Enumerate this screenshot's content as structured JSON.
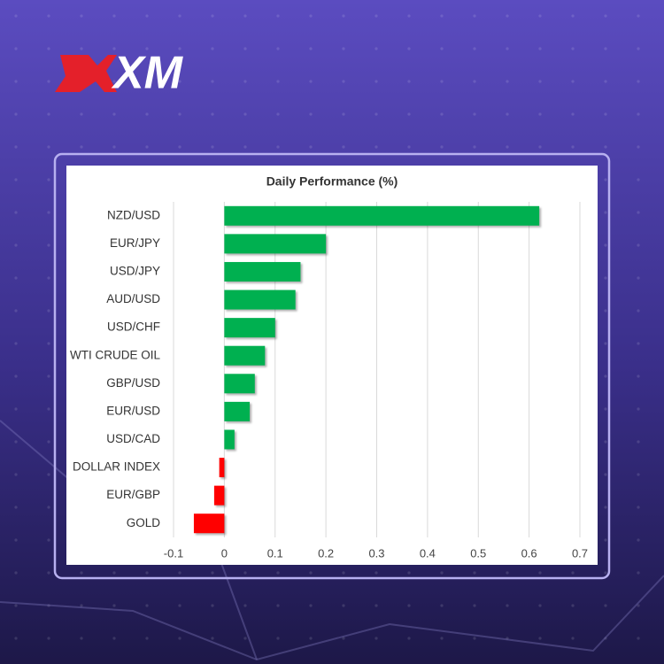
{
  "brand": "XM",
  "chart_data": {
    "type": "hbar",
    "title": "Daily Performance (%)",
    "categories": [
      "NZD/USD",
      "EUR/JPY",
      "USD/JPY",
      "AUD/USD",
      "USD/CHF",
      "WTI CRUDE OIL",
      "GBP/USD",
      "EUR/USD",
      "USD/CAD",
      "DOLLAR INDEX",
      "EUR/GBP",
      "GOLD"
    ],
    "values": [
      0.62,
      0.2,
      0.15,
      0.14,
      0.1,
      0.08,
      0.06,
      0.05,
      0.02,
      -0.01,
      -0.02,
      -0.06
    ],
    "color": "#00b050",
    "negative_color": "#ff0000",
    "xlim": [
      -0.1,
      0.7
    ],
    "xticks": [
      -0.1,
      0,
      0.1,
      0.2,
      0.3,
      0.4,
      0.5,
      0.6,
      0.7
    ],
    "grid": true
  }
}
